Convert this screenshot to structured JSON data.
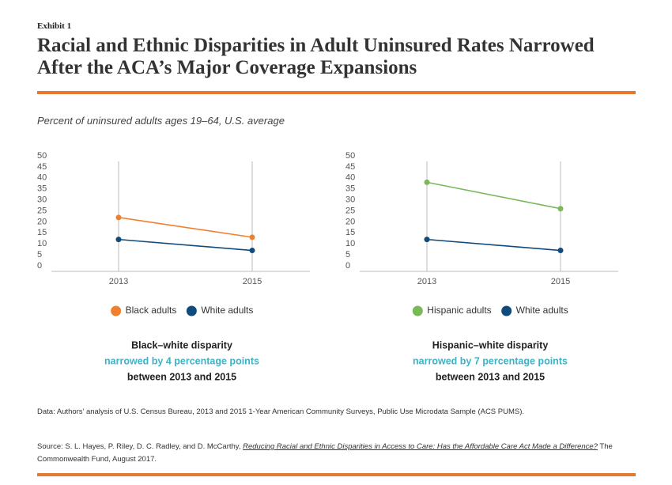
{
  "exhibit": "Exhibit 1",
  "title": "Racial and Ethnic Disparities in Adult Uninsured Rates Narrowed After the ACA’s Major Coverage Expansions",
  "subtitle": "Percent of uninsured adults ages 19–64, U.S. average",
  "data_note": "Data: Authors’ analysis of U.S. Census Bureau, 2013 and 2015 1-Year American Community Surveys, Public Use Microdata Sample (ACS PUMS).",
  "source": {
    "prefix": "Source: S. L. Hayes, P. Riley, D. C. Radley, and D. McCarthy, ",
    "link": "Reducing Racial and Ethnic Disparities in Access to Care: Has the Affordable Care Act Made a Difference?",
    "suffix": " The Commonwealth Fund, August 2017."
  },
  "chart_data": [
    {
      "type": "line",
      "categories": [
        "2013",
        "2015"
      ],
      "series": [
        {
          "name": "Black adults",
          "color": "#f08030",
          "values": [
            22,
            13
          ]
        },
        {
          "name": "White adults",
          "color": "#0f4b7d",
          "values": [
            12,
            7
          ]
        }
      ],
      "ylim": [
        0,
        50
      ],
      "yticks": [
        0,
        5,
        10,
        15,
        20,
        25,
        30,
        35,
        40,
        45,
        50
      ],
      "grid": true,
      "legend": "bottom",
      "caption": [
        "Black–white disparity",
        "narrowed by 4 percentage points",
        "between 2013 and 2015"
      ]
    },
    {
      "type": "line",
      "categories": [
        "2013",
        "2015"
      ],
      "series": [
        {
          "name": "Hispanic adults",
          "color": "#7ab85a",
          "values": [
            38,
            26
          ]
        },
        {
          "name": "White adults",
          "color": "#0f4b7d",
          "values": [
            12,
            7
          ]
        }
      ],
      "ylim": [
        0,
        50
      ],
      "yticks": [
        0,
        5,
        10,
        15,
        20,
        25,
        30,
        35,
        40,
        45,
        50
      ],
      "grid": true,
      "legend": "bottom",
      "caption": [
        "Hispanic–white disparity",
        "narrowed by 7 percentage points",
        "between 2013 and 2015"
      ]
    }
  ]
}
